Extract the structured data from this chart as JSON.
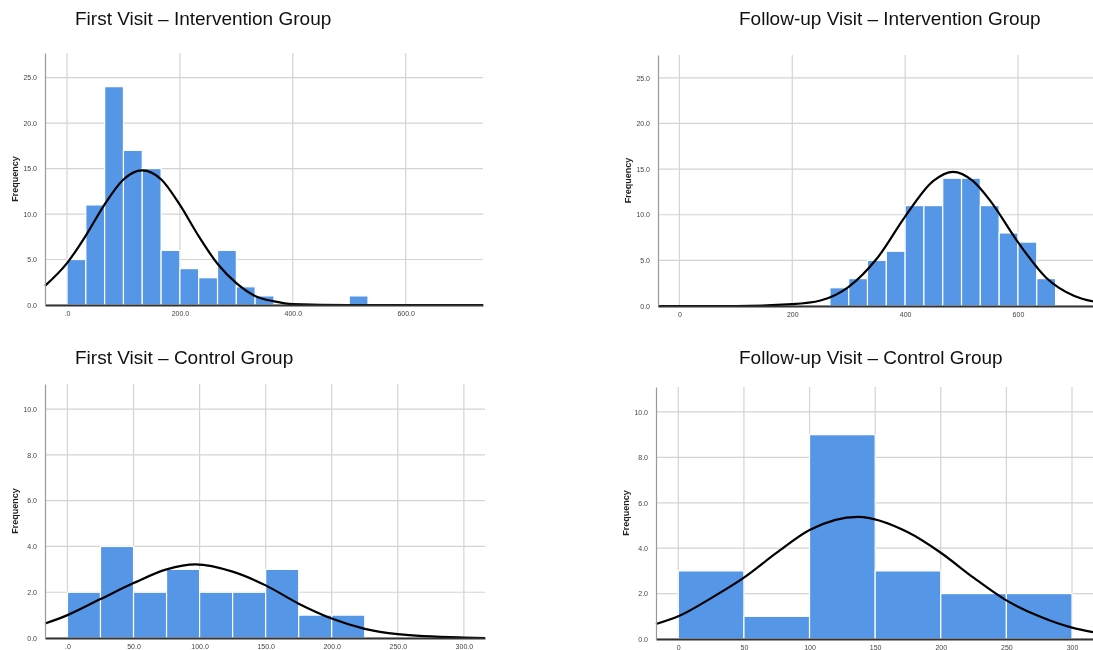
{
  "chart_data": [
    {
      "type": "histogram",
      "title": "First Visit – Intervention Group",
      "ylabel": "Frequency",
      "color": "#5596e6",
      "bins": [
        0,
        33.3,
        66.7,
        100,
        133.3,
        166.7,
        200,
        233.3,
        266.7,
        300,
        333.3,
        366.7,
        400,
        433.3,
        466.7,
        500,
        533.3
      ],
      "values": [
        5,
        11,
        24,
        17,
        15,
        6,
        4,
        3,
        6,
        2,
        1,
        0,
        0,
        0,
        0,
        1
      ],
      "series": [
        {
          "type": "line",
          "color": "#000000",
          "x": [
            -39,
            0,
            33,
            67,
            100,
            133,
            167,
            200,
            233,
            267,
            300,
            333,
            367,
            400,
            500,
            737
          ],
          "values": [
            2.1,
            4.6,
            7.6,
            11.1,
            13.8,
            14.8,
            13.8,
            11.0,
            7.6,
            4.5,
            2.4,
            1.0,
            0.4,
            0.1,
            0,
            0
          ]
        }
      ],
      "xlim": [
        -39,
        737
      ],
      "ylim": [
        0,
        27.7
      ],
      "xticks": [
        {
          "value": 0,
          "label": ".0"
        },
        {
          "value": 200,
          "label": "200.0"
        },
        {
          "value": 400,
          "label": "400.0"
        },
        {
          "value": 600,
          "label": "600.0"
        }
      ],
      "yticks": [
        {
          "value": 0,
          "label": "0.0"
        },
        {
          "value": 5,
          "label": "5.0"
        },
        {
          "value": 10,
          "label": "10.0"
        },
        {
          "value": 15,
          "label": "15.0"
        },
        {
          "value": 20,
          "label": "20.0"
        },
        {
          "value": 25,
          "label": "25.0"
        }
      ],
      "grid": true,
      "marker": "none"
    },
    {
      "type": "histogram",
      "title": "Follow-up Visit – Intervention Group",
      "ylabel": "Frequency",
      "color": "#5596e6",
      "bins": [
        266.7,
        300,
        333.3,
        366.7,
        400,
        433.3,
        466.7,
        500,
        533.3,
        566.7,
        600,
        633.3,
        666.7
      ],
      "values": [
        2,
        3,
        5,
        6,
        11,
        11,
        14,
        14,
        11,
        8,
        7,
        3
      ],
      "series": [
        {
          "type": "line",
          "color": "#000000",
          "x": [
            -38,
            0,
            100,
            200,
            250,
            300,
            350,
            400,
            450,
            485,
            520,
            550,
            600,
            650,
            700,
            733
          ],
          "values": [
            0,
            0,
            0,
            0.2,
            0.6,
            2.1,
            5.2,
            9.8,
            13.7,
            14.7,
            13.7,
            11.6,
            7.0,
            3.1,
            1.1,
            0.5
          ]
        }
      ],
      "xlim": [
        -38,
        733
      ],
      "ylim": [
        0,
        27.5
      ],
      "xticks": [
        0,
        200,
        400,
        600
      ],
      "yticks": [
        {
          "value": 0,
          "label": "0.0"
        },
        {
          "value": 5,
          "label": "5.0"
        },
        {
          "value": 10,
          "label": "10.0"
        },
        {
          "value": 15,
          "label": "15.0"
        },
        {
          "value": 20,
          "label": "20.0"
        },
        {
          "value": 25,
          "label": "25.0"
        }
      ],
      "grid": true,
      "marker": "none"
    },
    {
      "type": "histogram",
      "title": "First Visit – Control Group",
      "ylabel": "Frequency",
      "color": "#5596e6",
      "bins": [
        0,
        25,
        50,
        75,
        100,
        125,
        150,
        175,
        200,
        225
      ],
      "values": [
        2,
        4,
        2,
        3,
        2,
        2,
        3,
        1,
        1
      ],
      "series": [
        {
          "type": "line",
          "color": "#000000",
          "x": [
            -17,
            0,
            25,
            50,
            75,
            97,
            125,
            150,
            175,
            200,
            225,
            250,
            300,
            316
          ],
          "values": [
            0.63,
            1.0,
            1.7,
            2.4,
            3.0,
            3.22,
            2.9,
            2.3,
            1.5,
            0.85,
            0.4,
            0.17,
            0.02,
            0
          ]
        }
      ],
      "xlim": [
        -17,
        316
      ],
      "ylim": [
        0,
        11.1
      ],
      "xticks": [
        {
          "value": 0,
          "label": ".0"
        },
        {
          "value": 50,
          "label": "50.0"
        },
        {
          "value": 100,
          "label": "100.0"
        },
        {
          "value": 150,
          "label": "150.0"
        },
        {
          "value": 200,
          "label": "200.0"
        },
        {
          "value": 250,
          "label": "250.0"
        },
        {
          "value": 300,
          "label": "300.0"
        }
      ],
      "yticks": [
        {
          "value": 0,
          "label": "0.0"
        },
        {
          "value": 2,
          "label": "2.0"
        },
        {
          "value": 4,
          "label": "4.0"
        },
        {
          "value": 6,
          "label": "6.0"
        },
        {
          "value": 8,
          "label": "8.0"
        },
        {
          "value": 10,
          "label": "10.0"
        }
      ],
      "grid": true,
      "marker": "none"
    },
    {
      "type": "histogram",
      "title": "Follow-up Visit – Control Group",
      "ylabel": "Frequency",
      "color": "#5596e6",
      "bins": [
        0,
        50,
        100,
        150,
        200,
        250,
        300
      ],
      "values": [
        3,
        1,
        9,
        3,
        2,
        2
      ],
      "series": [
        {
          "type": "line",
          "color": "#000000",
          "x": [
            -17,
            0,
            25,
            50,
            75,
            100,
            137,
            175,
            200,
            225,
            250,
            275,
            300,
            316
          ],
          "values": [
            0.66,
            1.0,
            1.8,
            2.7,
            3.8,
            4.8,
            5.38,
            4.7,
            3.8,
            2.7,
            1.7,
            1.0,
            0.5,
            0.3
          ]
        }
      ],
      "xlim": [
        -17,
        316
      ],
      "ylim": [
        0,
        11.1
      ],
      "xticks": [
        0,
        50,
        100,
        150,
        200,
        250,
        300
      ],
      "yticks": [
        {
          "value": 0,
          "label": "0.0"
        },
        {
          "value": 2,
          "label": "2.0"
        },
        {
          "value": 4,
          "label": "4.0"
        },
        {
          "value": 6,
          "label": "6.0"
        },
        {
          "value": 8,
          "label": "8.0"
        },
        {
          "value": 10,
          "label": "10.0"
        }
      ],
      "grid": true,
      "marker": "none"
    }
  ]
}
